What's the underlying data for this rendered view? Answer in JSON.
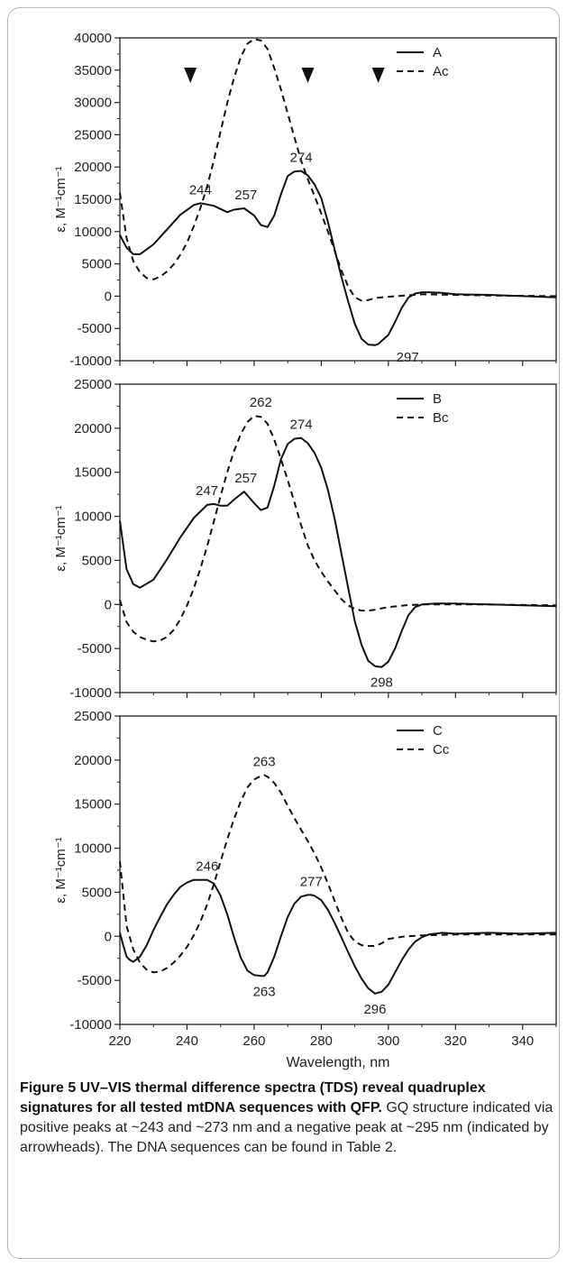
{
  "chart_data": [
    {
      "type": "line",
      "ylabel": "ε, M⁻¹cm⁻¹",
      "xlim": [
        220,
        350
      ],
      "ylim": [
        -10000,
        40000
      ],
      "yticks": [
        -10000,
        -5000,
        0,
        5000,
        10000,
        15000,
        20000,
        25000,
        30000,
        35000,
        40000
      ],
      "legend": "top-right",
      "series": [
        {
          "name": "A",
          "style": "solid",
          "x": [
            220,
            222,
            224,
            226,
            230,
            234,
            238,
            242,
            244,
            248,
            252,
            254,
            257,
            260,
            262,
            264,
            266,
            268,
            270,
            272,
            274,
            276,
            278,
            280,
            282,
            284,
            286,
            288,
            290,
            292,
            294,
            296,
            297,
            300,
            302,
            304,
            306,
            308,
            310,
            312,
            316,
            320,
            330,
            340,
            350
          ],
          "y": [
            9500,
            7500,
            6500,
            6500,
            8000,
            10300,
            12600,
            14100,
            14400,
            14000,
            13000,
            13400,
            13600,
            12500,
            11000,
            10700,
            12500,
            15800,
            18600,
            19300,
            19400,
            18700,
            17300,
            15200,
            11500,
            7200,
            3000,
            -800,
            -4300,
            -6600,
            -7500,
            -7600,
            -7400,
            -6000,
            -4000,
            -1800,
            -200,
            400,
            600,
            600,
            500,
            300,
            200,
            0,
            -200
          ]
        },
        {
          "name": "Ac",
          "style": "dashed",
          "x": [
            220,
            222,
            224,
            226,
            228,
            230,
            232,
            234,
            236,
            238,
            240,
            242,
            244,
            246,
            248,
            250,
            252,
            254,
            256,
            258,
            260,
            262,
            264,
            266,
            268,
            270,
            272,
            274,
            276,
            278,
            280,
            282,
            284,
            286,
            288,
            290,
            292,
            294,
            296,
            300,
            305,
            310,
            320,
            330,
            350
          ],
          "y": [
            16000,
            9000,
            5400,
            3700,
            2800,
            2600,
            3000,
            3800,
            4900,
            6400,
            8300,
            10800,
            13700,
            17000,
            21000,
            25500,
            29900,
            33800,
            37000,
            39100,
            39800,
            39600,
            38300,
            35300,
            32000,
            28300,
            24600,
            21000,
            18100,
            15500,
            12800,
            10000,
            7000,
            4000,
            1500,
            -200,
            -700,
            -600,
            -300,
            -100,
            100,
            300,
            200,
            100,
            0
          ]
        }
      ],
      "annotations": [
        "244",
        "257",
        "274",
        "297"
      ],
      "arrowheads_at": [
        241,
        276,
        297
      ]
    },
    {
      "type": "line",
      "ylabel": "ε, M⁻¹cm⁻¹",
      "xlim": [
        220,
        350
      ],
      "ylim": [
        -10000,
        25000
      ],
      "yticks": [
        -10000,
        -5000,
        0,
        5000,
        10000,
        15000,
        20000,
        25000
      ],
      "legend": "top-right",
      "series": [
        {
          "name": "B",
          "style": "solid",
          "x": [
            220,
            222,
            224,
            226,
            230,
            234,
            238,
            242,
            246,
            248,
            250,
            252,
            254,
            257,
            260,
            262,
            264,
            266,
            268,
            270,
            272,
            274,
            276,
            278,
            280,
            282,
            284,
            286,
            288,
            290,
            292,
            294,
            296,
            298,
            300,
            302,
            304,
            306,
            308,
            310,
            314,
            320,
            330,
            340,
            350
          ],
          "y": [
            9500,
            4000,
            2300,
            1900,
            2800,
            5100,
            7600,
            9800,
            11300,
            11400,
            11200,
            11200,
            11900,
            12800,
            11500,
            10700,
            11000,
            13500,
            16500,
            18200,
            18800,
            18900,
            18300,
            17200,
            15500,
            13000,
            9700,
            5800,
            1900,
            -1900,
            -4600,
            -6400,
            -7000,
            -7100,
            -6500,
            -5000,
            -3000,
            -1200,
            -300,
            0,
            100,
            100,
            0,
            -100,
            -200
          ]
        },
        {
          "name": "Bc",
          "style": "dashed",
          "x": [
            220,
            222,
            224,
            226,
            228,
            230,
            232,
            234,
            236,
            238,
            240,
            242,
            244,
            246,
            248,
            250,
            252,
            254,
            256,
            258,
            260,
            262,
            264,
            266,
            268,
            270,
            272,
            274,
            276,
            278,
            280,
            282,
            284,
            286,
            288,
            290,
            292,
            294,
            296,
            300,
            305,
            310,
            320,
            330,
            350
          ],
          "y": [
            500,
            -2000,
            -3100,
            -3700,
            -4000,
            -4200,
            -4100,
            -3700,
            -2900,
            -1700,
            -100,
            1800,
            4100,
            6600,
            9400,
            12300,
            15000,
            17400,
            19300,
            20700,
            21400,
            21300,
            20500,
            18700,
            16500,
            14100,
            11600,
            9000,
            6700,
            5000,
            3700,
            2600,
            1600,
            600,
            -100,
            -500,
            -700,
            -700,
            -600,
            -300,
            -100,
            0,
            0,
            0,
            -100
          ]
        }
      ],
      "annotations": [
        "247",
        "257",
        "262",
        "274",
        "298"
      ]
    },
    {
      "type": "line",
      "ylabel": "ε, M⁻¹cm⁻¹",
      "xlabel": "Wavelength, nm",
      "xlim": [
        220,
        350
      ],
      "ylim": [
        -10000,
        25000
      ],
      "xticks": [
        220,
        240,
        260,
        280,
        300,
        320,
        340
      ],
      "yticks": [
        -10000,
        -5000,
        0,
        5000,
        10000,
        15000,
        20000,
        25000
      ],
      "legend": "top-right",
      "series": [
        {
          "name": "C",
          "style": "solid",
          "x": [
            220,
            221,
            222,
            223,
            224,
            226,
            228,
            230,
            232,
            234,
            236,
            238,
            240,
            242,
            244,
            246,
            248,
            250,
            252,
            254,
            256,
            258,
            260,
            262,
            263,
            264,
            266,
            268,
            270,
            272,
            274,
            276,
            277,
            278,
            280,
            282,
            284,
            286,
            288,
            290,
            292,
            294,
            296,
            298,
            300,
            302,
            304,
            306,
            308,
            310,
            312,
            314,
            316,
            320,
            330,
            340,
            350
          ],
          "y": [
            400,
            -1000,
            -2300,
            -2700,
            -2900,
            -2300,
            -1000,
            700,
            2200,
            3600,
            4700,
            5600,
            6100,
            6400,
            6400,
            6400,
            6000,
            4600,
            2500,
            -100,
            -2400,
            -3900,
            -4400,
            -4500,
            -4500,
            -4100,
            -2300,
            0,
            2200,
            3700,
            4500,
            4700,
            4700,
            4600,
            4100,
            3000,
            1500,
            -100,
            -1800,
            -3400,
            -4800,
            -5900,
            -6500,
            -6300,
            -5500,
            -4100,
            -2700,
            -1500,
            -600,
            -100,
            200,
            300,
            400,
            300,
            400,
            300,
            400
          ]
        },
        {
          "name": "Cc",
          "style": "dashed",
          "x": [
            220,
            222,
            224,
            226,
            228,
            230,
            232,
            234,
            236,
            238,
            240,
            242,
            244,
            246,
            248,
            250,
            252,
            254,
            256,
            258,
            260,
            262,
            263,
            264,
            266,
            268,
            270,
            272,
            274,
            276,
            278,
            280,
            282,
            284,
            286,
            288,
            290,
            292,
            294,
            296,
            298,
            300,
            305,
            310,
            320,
            330,
            350
          ],
          "y": [
            8500,
            1200,
            -1500,
            -3000,
            -3800,
            -4100,
            -4000,
            -3600,
            -3000,
            -2200,
            -1200,
            100,
            1700,
            3600,
            5900,
            8500,
            11000,
            13300,
            15300,
            16900,
            17800,
            18200,
            18300,
            18100,
            17400,
            16300,
            14800,
            13400,
            12100,
            10800,
            9400,
            7800,
            6000,
            4000,
            2100,
            400,
            -600,
            -1000,
            -1100,
            -1100,
            -800,
            -300,
            0,
            100,
            200,
            200,
            200
          ]
        }
      ],
      "annotations": [
        "246",
        "263",
        "263",
        "277",
        "296"
      ]
    }
  ],
  "caption": {
    "title": "Figure 5 UV–VIS thermal difference spectra (TDS) reveal quadruplex signatures for all tested mtDNA sequences with QFP.",
    "body": "GQ structure indicated via positive peaks at ~243 and ~273 nm and a negative peak at ~295 nm (indicated by arrowheads). The DNA sequences can be found in Table 2."
  }
}
